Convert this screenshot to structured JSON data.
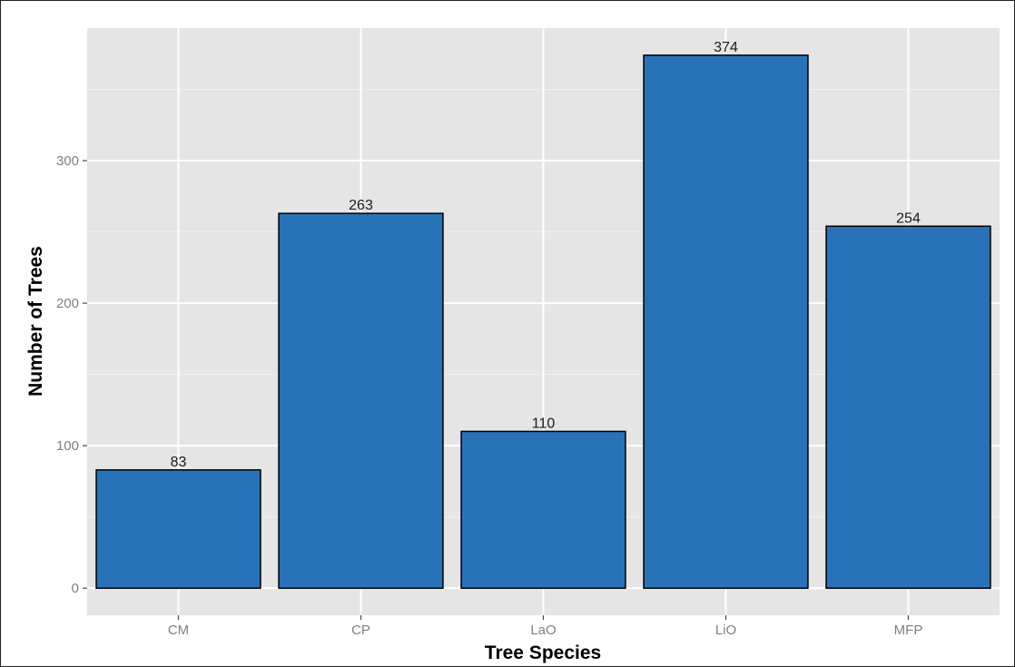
{
  "chart_data": {
    "type": "bar",
    "title": "",
    "xlabel": "Tree Species",
    "ylabel": "Number of Trees",
    "categories": [
      "CM",
      "CP",
      "LaO",
      "LiO",
      "MFP"
    ],
    "values": [
      83,
      263,
      110,
      374,
      254
    ],
    "data_labels": [
      "83",
      "263",
      "110",
      "374",
      "254"
    ],
    "ylim": [
      -19,
      393
    ],
    "y_ticks": [
      0,
      100,
      200,
      300
    ],
    "y_tick_labels": [
      "0",
      "100",
      "200",
      "300"
    ],
    "grid": true,
    "legend": "none",
    "colors": {
      "bar_fill": "#2872b8",
      "bar_stroke": "#000000",
      "panel_background": "#e5e5e5",
      "grid_major": "#ffffff",
      "grid_minor": "#f0f0f0"
    }
  }
}
